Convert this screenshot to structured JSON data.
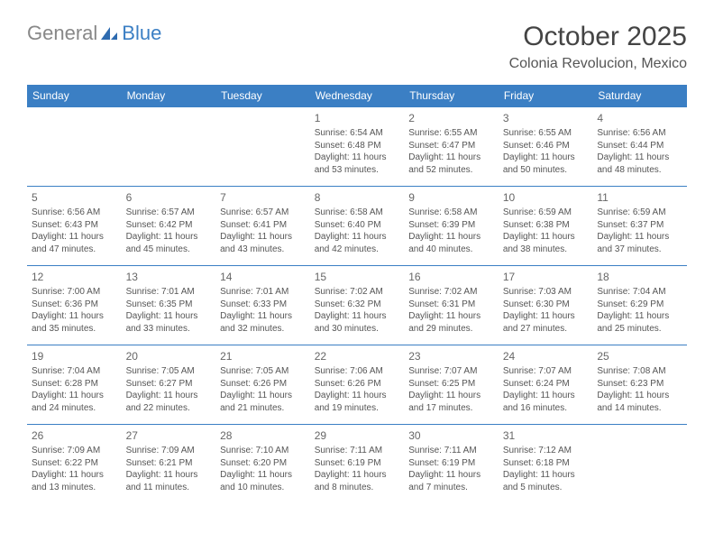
{
  "logo": {
    "text1": "General",
    "text2": "Blue"
  },
  "title": "October 2025",
  "location": "Colonia Revolucion, Mexico",
  "colors": {
    "header_bg": "#3b7fc4",
    "header_text": "#ffffff",
    "border": "#3b7fc4",
    "page_bg": "#ffffff",
    "body_text": "#555555",
    "title_text": "#444444"
  },
  "typography": {
    "title_fontsize": 30,
    "location_fontsize": 16,
    "header_fontsize": 12,
    "daynum_fontsize": 12,
    "cell_fontsize": 10
  },
  "layout": {
    "columns": 7,
    "rows": 5
  },
  "day_headers": [
    "Sunday",
    "Monday",
    "Tuesday",
    "Wednesday",
    "Thursday",
    "Friday",
    "Saturday"
  ],
  "weeks": [
    [
      null,
      null,
      null,
      {
        "n": "1",
        "sr": "6:54 AM",
        "ss": "6:48 PM",
        "dl": "11 hours and 53 minutes."
      },
      {
        "n": "2",
        "sr": "6:55 AM",
        "ss": "6:47 PM",
        "dl": "11 hours and 52 minutes."
      },
      {
        "n": "3",
        "sr": "6:55 AM",
        "ss": "6:46 PM",
        "dl": "11 hours and 50 minutes."
      },
      {
        "n": "4",
        "sr": "6:56 AM",
        "ss": "6:44 PM",
        "dl": "11 hours and 48 minutes."
      }
    ],
    [
      {
        "n": "5",
        "sr": "6:56 AM",
        "ss": "6:43 PM",
        "dl": "11 hours and 47 minutes."
      },
      {
        "n": "6",
        "sr": "6:57 AM",
        "ss": "6:42 PM",
        "dl": "11 hours and 45 minutes."
      },
      {
        "n": "7",
        "sr": "6:57 AM",
        "ss": "6:41 PM",
        "dl": "11 hours and 43 minutes."
      },
      {
        "n": "8",
        "sr": "6:58 AM",
        "ss": "6:40 PM",
        "dl": "11 hours and 42 minutes."
      },
      {
        "n": "9",
        "sr": "6:58 AM",
        "ss": "6:39 PM",
        "dl": "11 hours and 40 minutes."
      },
      {
        "n": "10",
        "sr": "6:59 AM",
        "ss": "6:38 PM",
        "dl": "11 hours and 38 minutes."
      },
      {
        "n": "11",
        "sr": "6:59 AM",
        "ss": "6:37 PM",
        "dl": "11 hours and 37 minutes."
      }
    ],
    [
      {
        "n": "12",
        "sr": "7:00 AM",
        "ss": "6:36 PM",
        "dl": "11 hours and 35 minutes."
      },
      {
        "n": "13",
        "sr": "7:01 AM",
        "ss": "6:35 PM",
        "dl": "11 hours and 33 minutes."
      },
      {
        "n": "14",
        "sr": "7:01 AM",
        "ss": "6:33 PM",
        "dl": "11 hours and 32 minutes."
      },
      {
        "n": "15",
        "sr": "7:02 AM",
        "ss": "6:32 PM",
        "dl": "11 hours and 30 minutes."
      },
      {
        "n": "16",
        "sr": "7:02 AM",
        "ss": "6:31 PM",
        "dl": "11 hours and 29 minutes."
      },
      {
        "n": "17",
        "sr": "7:03 AM",
        "ss": "6:30 PM",
        "dl": "11 hours and 27 minutes."
      },
      {
        "n": "18",
        "sr": "7:04 AM",
        "ss": "6:29 PM",
        "dl": "11 hours and 25 minutes."
      }
    ],
    [
      {
        "n": "19",
        "sr": "7:04 AM",
        "ss": "6:28 PM",
        "dl": "11 hours and 24 minutes."
      },
      {
        "n": "20",
        "sr": "7:05 AM",
        "ss": "6:27 PM",
        "dl": "11 hours and 22 minutes."
      },
      {
        "n": "21",
        "sr": "7:05 AM",
        "ss": "6:26 PM",
        "dl": "11 hours and 21 minutes."
      },
      {
        "n": "22",
        "sr": "7:06 AM",
        "ss": "6:26 PM",
        "dl": "11 hours and 19 minutes."
      },
      {
        "n": "23",
        "sr": "7:07 AM",
        "ss": "6:25 PM",
        "dl": "11 hours and 17 minutes."
      },
      {
        "n": "24",
        "sr": "7:07 AM",
        "ss": "6:24 PM",
        "dl": "11 hours and 16 minutes."
      },
      {
        "n": "25",
        "sr": "7:08 AM",
        "ss": "6:23 PM",
        "dl": "11 hours and 14 minutes."
      }
    ],
    [
      {
        "n": "26",
        "sr": "7:09 AM",
        "ss": "6:22 PM",
        "dl": "11 hours and 13 minutes."
      },
      {
        "n": "27",
        "sr": "7:09 AM",
        "ss": "6:21 PM",
        "dl": "11 hours and 11 minutes."
      },
      {
        "n": "28",
        "sr": "7:10 AM",
        "ss": "6:20 PM",
        "dl": "11 hours and 10 minutes."
      },
      {
        "n": "29",
        "sr": "7:11 AM",
        "ss": "6:19 PM",
        "dl": "11 hours and 8 minutes."
      },
      {
        "n": "30",
        "sr": "7:11 AM",
        "ss": "6:19 PM",
        "dl": "11 hours and 7 minutes."
      },
      {
        "n": "31",
        "sr": "7:12 AM",
        "ss": "6:18 PM",
        "dl": "11 hours and 5 minutes."
      },
      null
    ]
  ],
  "labels": {
    "sunrise": "Sunrise:",
    "sunset": "Sunset:",
    "daylight": "Daylight:"
  }
}
